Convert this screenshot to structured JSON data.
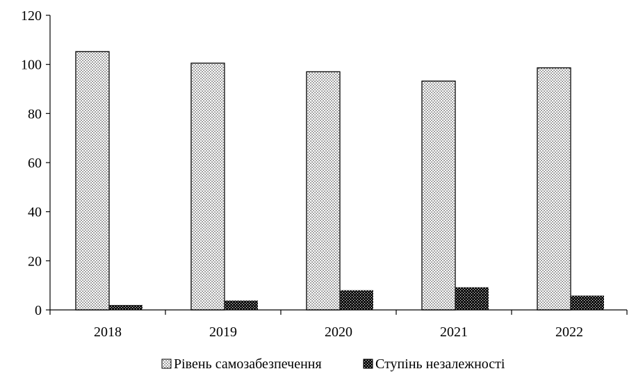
{
  "chart_data": {
    "type": "bar",
    "categories": [
      "2018",
      "2019",
      "2020",
      "2021",
      "2022"
    ],
    "series": [
      {
        "name": "Рівень самозабезпечення",
        "values": [
          105.2,
          100.5,
          97.0,
          93.2,
          98.6
        ]
      },
      {
        "name": "Ступінь незалежності",
        "values": [
          2.0,
          3.8,
          8.0,
          9.2,
          5.8
        ]
      }
    ],
    "ylim": [
      0,
      120
    ],
    "yticks": [
      0,
      20,
      40,
      60,
      80,
      100,
      120
    ],
    "title": "",
    "xlabel": "",
    "ylabel": "",
    "grid": false,
    "legend_position": "bottom",
    "colors": {
      "axis": "#000000",
      "bar_outline": "#000000",
      "series1_fill": "#ffffff",
      "series2_fill": "#000000"
    }
  }
}
